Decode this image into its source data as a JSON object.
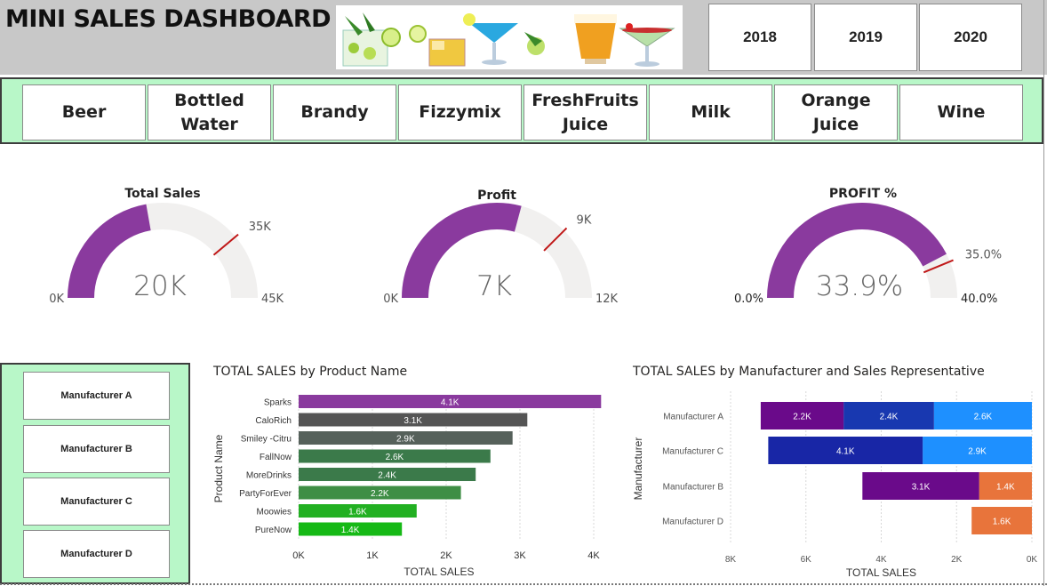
{
  "header": {
    "title": "MINI SALES DASHBOARD",
    "years": [
      "2018",
      "2019",
      "2020"
    ]
  },
  "products": [
    {
      "label": "Beer"
    },
    {
      "label": "Bottled\nWater"
    },
    {
      "label": "Brandy"
    },
    {
      "label": "Fizzymix"
    },
    {
      "label": "FreshFruits\nJuice"
    },
    {
      "label": "Milk"
    },
    {
      "label": "Orange\nJuice"
    },
    {
      "label": "Wine"
    }
  ],
  "gauges": [
    {
      "title": "Total Sales",
      "value": 20,
      "value_label": "20K",
      "min": 0,
      "min_label": "0K",
      "max": 45,
      "max_label": "45K",
      "target": 35,
      "target_label": "35K"
    },
    {
      "title": "Profit",
      "value": 7,
      "value_label": "7K",
      "min": 0,
      "min_label": "0K",
      "max": 12,
      "max_label": "12K",
      "target": 9,
      "target_label": "9K"
    },
    {
      "title": "PROFIT %",
      "value": 33.9,
      "value_label": "33.9%",
      "min": 0,
      "min_label": "0.0%",
      "max": 40,
      "max_label": "40.0%",
      "target": 35,
      "target_label": "35.0%"
    }
  ],
  "colors": {
    "gauge_fill": "#8a3a9e",
    "gauge_track": "#f1f0ef",
    "gauge_target": "#c01818",
    "panel_green": "#b8f7c8"
  },
  "manufacturers": [
    "Manufacturer A",
    "Manufacturer B",
    "Manufacturer C",
    "Manufacturer D"
  ],
  "chart_data": [
    {
      "type": "bar",
      "title": "TOTAL SALES by Product Name",
      "xlabel": "TOTAL SALES",
      "ylabel": "Product Name",
      "categories": [
        "Sparks",
        "CaloRich",
        "Smiley -Citru",
        "FallNow",
        "MoreDrinks",
        "PartyForEver",
        "Moowies",
        "PureNow"
      ],
      "values": [
        4.1,
        3.1,
        2.9,
        2.6,
        2.4,
        2.2,
        1.6,
        1.4
      ],
      "value_labels": [
        "4.1K",
        "3.1K",
        "2.9K",
        "2.6K",
        "2.4K",
        "2.2K",
        "1.6K",
        "1.4K"
      ],
      "bar_colors": [
        "#8a3a9e",
        "#555555",
        "#56615b",
        "#3b7a4a",
        "#3b7a4a",
        "#3e8e45",
        "#22b022",
        "#16b916"
      ],
      "xlim": [
        0,
        4
      ],
      "xticks": [
        "0K",
        "1K",
        "2K",
        "3K",
        "4K"
      ]
    },
    {
      "type": "bar",
      "orientation": "horizontal-stacked-reversed",
      "title": "TOTAL SALES by Manufacturer and Sales Representative",
      "xlabel": "TOTAL SALES",
      "ylabel": "Manufacturer",
      "categories": [
        "Manufacturer A",
        "Manufacturer C",
        "Manufacturer B",
        "Manufacturer D"
      ],
      "segments": [
        [
          {
            "value": 2.6,
            "label": "2.6K",
            "color": "#1e90ff"
          },
          {
            "value": 2.4,
            "label": "2.4K",
            "color": "#1838b0"
          },
          {
            "value": 2.2,
            "label": "2.2K",
            "color": "#6a0a8a"
          }
        ],
        [
          {
            "value": 2.9,
            "label": "2.9K",
            "color": "#1e90ff"
          },
          {
            "value": 4.1,
            "label": "4.1K",
            "color": "#1826a6"
          }
        ],
        [
          {
            "value": 1.4,
            "label": "1.4K",
            "color": "#e8743b"
          },
          {
            "value": 3.1,
            "label": "3.1K",
            "color": "#6a0a8a"
          }
        ],
        [
          {
            "value": 1.6,
            "label": "1.6K",
            "color": "#e8743b"
          }
        ]
      ],
      "xlim": [
        0,
        8
      ],
      "xticks": [
        "8K",
        "6K",
        "4K",
        "2K",
        "0K"
      ]
    }
  ]
}
